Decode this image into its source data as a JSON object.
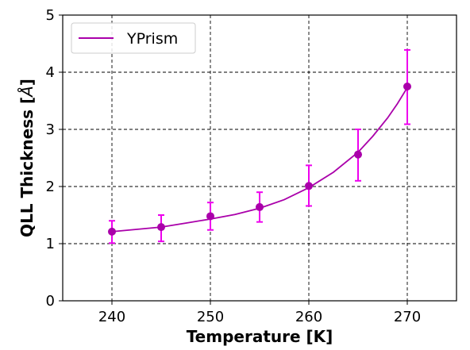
{
  "chart_data": {
    "type": "line",
    "xlabel": "Temperature [K]",
    "ylabel": "QLL Thickness [",
    "ylabel_unit": "Å",
    "ylabel_close": "]",
    "xlim": [
      235,
      275
    ],
    "ylim": [
      0,
      5
    ],
    "xticks": [
      240,
      250,
      260,
      270
    ],
    "yticks": [
      0,
      1,
      2,
      3,
      4,
      5
    ],
    "grid": true,
    "legend_position": "upper-left",
    "series": [
      {
        "name": "YPrism",
        "color": "#aa00aa",
        "errorbar_color": "#ee00ee",
        "points": [
          {
            "x": 240,
            "y": 1.21,
            "err_low": 0.2,
            "err_high": 0.19
          },
          {
            "x": 245,
            "y": 1.29,
            "err_low": 0.25,
            "err_high": 0.21
          },
          {
            "x": 250,
            "y": 1.48,
            "err_low": 0.24,
            "err_high": 0.24
          },
          {
            "x": 255,
            "y": 1.64,
            "err_low": 0.26,
            "err_high": 0.26
          },
          {
            "x": 260,
            "y": 2.01,
            "err_low": 0.35,
            "err_high": 0.36
          },
          {
            "x": 265,
            "y": 2.56,
            "err_low": 0.46,
            "err_high": 0.44
          },
          {
            "x": 270,
            "y": 3.75,
            "err_low": 0.66,
            "err_high": 0.64
          }
        ],
        "fit": [
          [
            240,
            1.21
          ],
          [
            242.5,
            1.25
          ],
          [
            245,
            1.29
          ],
          [
            247.5,
            1.36
          ],
          [
            250,
            1.43
          ],
          [
            252.5,
            1.51
          ],
          [
            255,
            1.62
          ],
          [
            257.5,
            1.77
          ],
          [
            260,
            1.98
          ],
          [
            262.5,
            2.25
          ],
          [
            265,
            2.6
          ],
          [
            266.5,
            2.88
          ],
          [
            268,
            3.2
          ],
          [
            269,
            3.45
          ],
          [
            270,
            3.73
          ]
        ]
      }
    ]
  }
}
